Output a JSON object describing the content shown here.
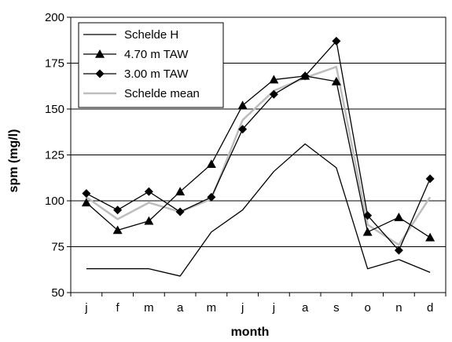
{
  "chart_data": {
    "type": "line",
    "title": "",
    "xlabel": "month",
    "ylabel": "spm (mg/l)",
    "categories": [
      "j",
      "f",
      "m",
      "a",
      "m",
      "j",
      "j",
      "a",
      "s",
      "o",
      "n",
      "d"
    ],
    "ylim": [
      50,
      200
    ],
    "yticks": [
      50,
      75,
      100,
      125,
      150,
      175,
      200
    ],
    "grid": "horizontal",
    "legend_position": "top-left",
    "series": [
      {
        "name": "Schelde H",
        "color": "#000000",
        "marker": "none",
        "values": [
          63,
          63,
          63,
          59,
          83,
          95,
          116,
          131,
          118,
          63,
          68,
          61
        ]
      },
      {
        "name": "4.70 m TAW",
        "color": "#000000",
        "marker": "triangle",
        "values": [
          99,
          84,
          89,
          105,
          120,
          152,
          166,
          168,
          165,
          83,
          91,
          80
        ]
      },
      {
        "name": "3.00 m TAW",
        "color": "#000000",
        "marker": "diamond",
        "values": [
          104,
          95,
          105,
          94,
          102,
          139,
          158,
          168,
          187,
          92,
          73,
          112
        ]
      },
      {
        "name": "Schelde mean",
        "color": "#bdbdbd",
        "marker": "none",
        "values": [
          102,
          90,
          99,
          94,
          101,
          144,
          160,
          167,
          173,
          87,
          76,
          102
        ]
      }
    ]
  }
}
